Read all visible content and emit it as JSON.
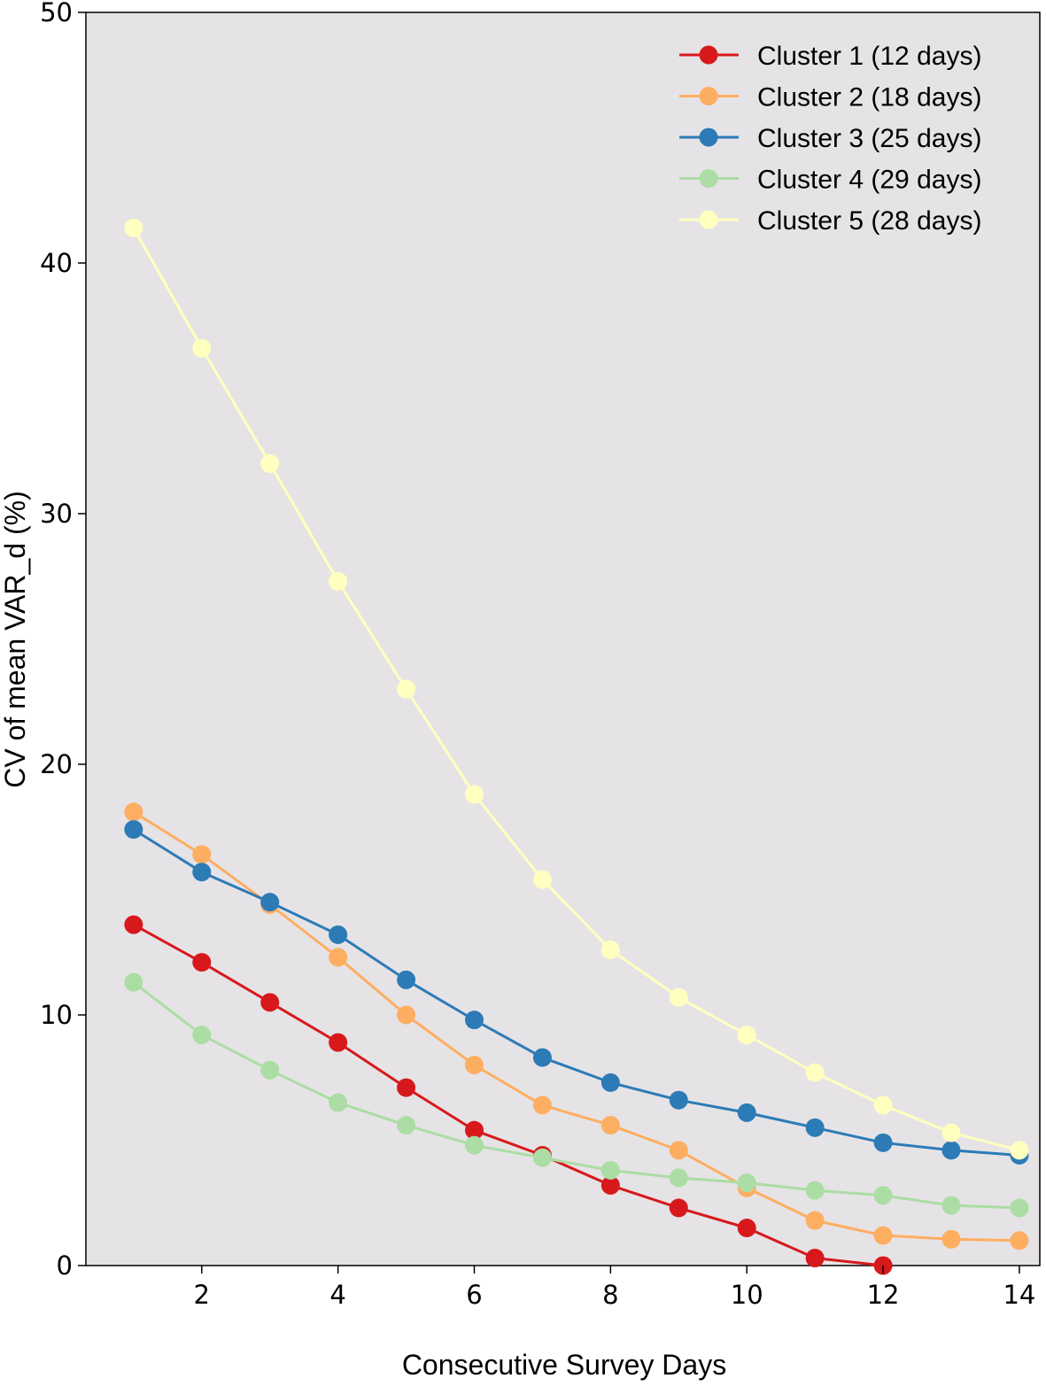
{
  "chart_data": {
    "type": "line",
    "title": "",
    "xlabel": "Consecutive Survey Days",
    "ylabel": "CV of mean VAR_d (%)",
    "xlim": [
      0.3,
      14.3
    ],
    "ylim": [
      0,
      50
    ],
    "xticks": [
      2,
      4,
      6,
      8,
      10,
      12,
      14
    ],
    "yticks": [
      0,
      10,
      20,
      30,
      40,
      50
    ],
    "grid": false,
    "legend_position": "top-right",
    "plot_background": "#e6e3e6",
    "series": [
      {
        "name": "Cluster 1 (12 days)",
        "color": "#d7191c",
        "x": [
          1,
          2,
          3,
          4,
          5,
          6,
          7,
          8,
          9,
          10,
          11,
          12
        ],
        "values": [
          13.6,
          12.1,
          10.5,
          8.9,
          7.1,
          5.4,
          4.4,
          3.2,
          2.3,
          1.5,
          0.3,
          0.0
        ]
      },
      {
        "name": "Cluster 2 (18 days)",
        "color": "#fdae61",
        "x": [
          1,
          2,
          3,
          4,
          5,
          6,
          7,
          8,
          9,
          10,
          11,
          12,
          13,
          14
        ],
        "values": [
          18.1,
          16.4,
          14.4,
          12.3,
          10.0,
          8.0,
          6.4,
          5.6,
          4.6,
          3.1,
          1.8,
          1.2,
          1.05,
          1.0
        ]
      },
      {
        "name": "Cluster 3 (25 days)",
        "color": "#2c7bb6",
        "x": [
          1,
          2,
          3,
          4,
          5,
          6,
          7,
          8,
          9,
          10,
          11,
          12,
          13,
          14
        ],
        "values": [
          17.4,
          15.7,
          14.5,
          13.2,
          11.4,
          9.8,
          8.3,
          7.3,
          6.6,
          6.1,
          5.5,
          4.9,
          4.6,
          4.4
        ]
      },
      {
        "name": "Cluster 4 (29 days)",
        "color": "#abdda4",
        "x": [
          1,
          2,
          3,
          4,
          5,
          6,
          7,
          8,
          9,
          10,
          11,
          12,
          13,
          14
        ],
        "values": [
          11.3,
          9.2,
          7.8,
          6.5,
          5.6,
          4.8,
          4.3,
          3.8,
          3.5,
          3.3,
          3.0,
          2.8,
          2.4,
          2.3
        ]
      },
      {
        "name": "Cluster 5 (28 days)",
        "color": "#ffffbf",
        "x": [
          1,
          2,
          3,
          4,
          5,
          6,
          7,
          8,
          9,
          10,
          11,
          12,
          13,
          14
        ],
        "values": [
          41.4,
          36.6,
          32.0,
          27.3,
          23.0,
          18.8,
          15.4,
          12.6,
          10.7,
          9.2,
          7.7,
          6.4,
          5.3,
          4.6
        ]
      }
    ]
  }
}
